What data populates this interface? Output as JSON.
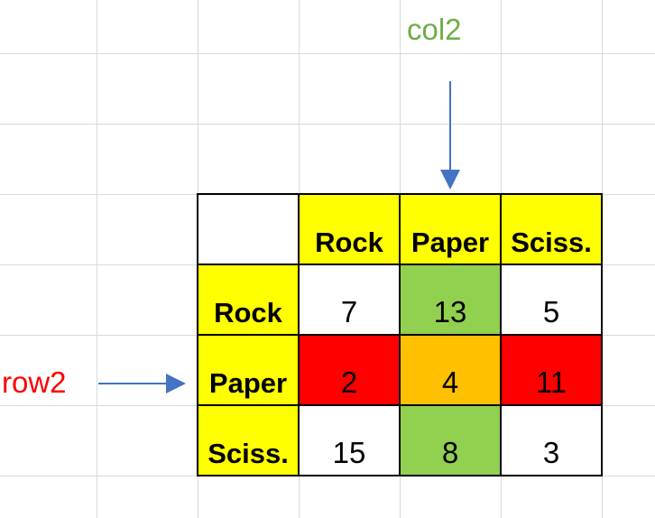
{
  "annotations": {
    "column_label": "col2",
    "row_label": "row2",
    "column_label_color": "#70ad47",
    "row_label_color": "#ff0000",
    "arrow_color": "#4472c4"
  },
  "colors": {
    "header_fill": "#ffff00",
    "plain_fill": "#ffffff",
    "green_fill": "#92d050",
    "red_fill": "#ff0000",
    "orange_fill": "#ffc000",
    "gridline": "#d9d9d9"
  },
  "matrix": {
    "column_headers": [
      "Rock",
      "Paper",
      "Sciss."
    ],
    "rows": [
      {
        "header": "Rock",
        "values": [
          "7",
          "13",
          "5"
        ]
      },
      {
        "header": "Paper",
        "values": [
          "2",
          "4",
          "11"
        ]
      },
      {
        "header": "Sciss.",
        "values": [
          "15",
          "8",
          "3"
        ]
      }
    ]
  }
}
